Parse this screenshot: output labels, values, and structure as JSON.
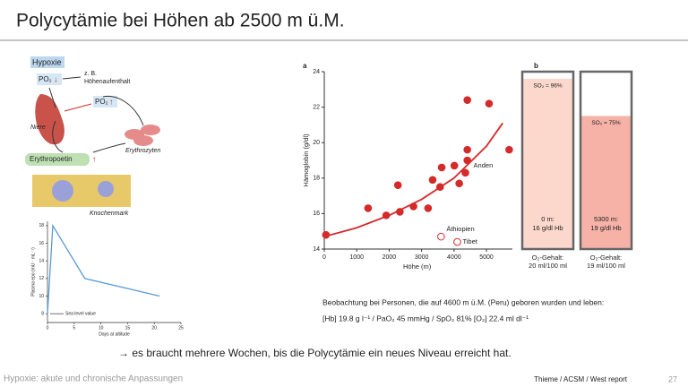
{
  "slide": {
    "title": "Polycytämie bei Höhen ab 2500 m ü.M.",
    "note_line_1": "Beobachtung bei Personen, die auf  4600 m ü.M. (Peru) geboren wurden und leben:",
    "note_line_2": "[Hb] 19.8 g l⁻¹  / PaO₂  45 mmHg / SpO₂ 81% [O₂] 22.4 ml dl⁻¹",
    "conclusion": "→ es braucht mehrere Wochen, bis die Polycytämie ein neues Niveau erreicht hat.",
    "footer_left": "Hypoxie: akute und chronische Anpassungen",
    "footer_right": "Thieme / ACSM / West report",
    "page_number": "27"
  },
  "diagram": {
    "hypoxie": "Hypoxie",
    "example": "z. B.",
    "example_2": "Höhenaufenthalt",
    "po2_low": "PO₂",
    "po2_high": "PO₂",
    "kidney": "Niere",
    "erythrocytes": "Erythrozyten",
    "epo": "Erythropoetin",
    "marrow": "Knochenmark"
  },
  "chart_data": [
    {
      "type": "scatter",
      "panel": "a",
      "xlabel": "Höhe (m)",
      "ylabel": "Hämoglobin (g/dl)",
      "xlim": [
        0,
        5800
      ],
      "ylim": [
        14,
        24
      ],
      "xticks": [
        0,
        1000,
        2000,
        3000,
        4000,
        5000
      ],
      "yticks": [
        14,
        16,
        18,
        20,
        22,
        24
      ],
      "series": [
        {
          "name": "Anden",
          "color": "#d42a2a",
          "marker": "filled",
          "x": [
            50,
            1350,
            1910,
            2270,
            2330,
            2750,
            3200,
            3340,
            3570,
            3620,
            4010,
            4160,
            4350,
            4410,
            4410,
            4410,
            5080,
            5700
          ],
          "values": [
            14.8,
            16.3,
            15.9,
            17.6,
            16.1,
            16.4,
            16.3,
            17.9,
            17.5,
            18.6,
            18.7,
            17.7,
            18.3,
            19.0,
            19.6,
            22.4,
            22.2,
            19.6
          ]
        },
        {
          "name": "Äthiopien",
          "color": "#d42a2a",
          "marker": "open",
          "x": [
            3600
          ],
          "values": [
            14.7
          ]
        },
        {
          "name": "Tibet",
          "color": "#d42a2a",
          "marker": "open",
          "x": [
            4100
          ],
          "values": [
            14.4
          ]
        }
      ],
      "trend": {
        "color": "#d42a2a",
        "x": [
          0,
          1000,
          2000,
          3000,
          4000,
          5000,
          5500
        ],
        "values": [
          14.7,
          15.2,
          15.9,
          16.8,
          18.0,
          19.8,
          21.1
        ]
      }
    },
    {
      "type": "line",
      "xlabel": "Days at altitude",
      "ylabel": "Plasma epo (mU · mL⁻¹)",
      "annotation": "Sea level value",
      "xlim": [
        0,
        25
      ],
      "ylim": [
        7,
        18.5
      ],
      "xticks": [
        0,
        5,
        10,
        15,
        20,
        25
      ],
      "yticks": [
        8,
        10,
        12,
        14,
        16,
        18
      ],
      "color": "#5b9bd5",
      "x": [
        0,
        1,
        7,
        21
      ],
      "values": [
        8,
        18,
        12,
        10
      ]
    },
    {
      "type": "bar",
      "panel": "b",
      "categories": [
        "0 m:",
        "5300 m:"
      ],
      "hb_labels": [
        "16 g/dl Hb",
        "19 g/dl Hb"
      ],
      "content_labels": [
        [
          "O₂-Gehalt:",
          "20 ml/100 ml"
        ],
        [
          "O₂-Gehalt:",
          "19 ml/100 ml"
        ]
      ],
      "values": [
        96,
        75
      ],
      "value_labels": [
        "SO₂ = 96%",
        "SO₂ = 75%"
      ],
      "colors": [
        "#fbd8cb",
        "#f6b2a7"
      ],
      "ylim": [
        0,
        100
      ]
    }
  ]
}
